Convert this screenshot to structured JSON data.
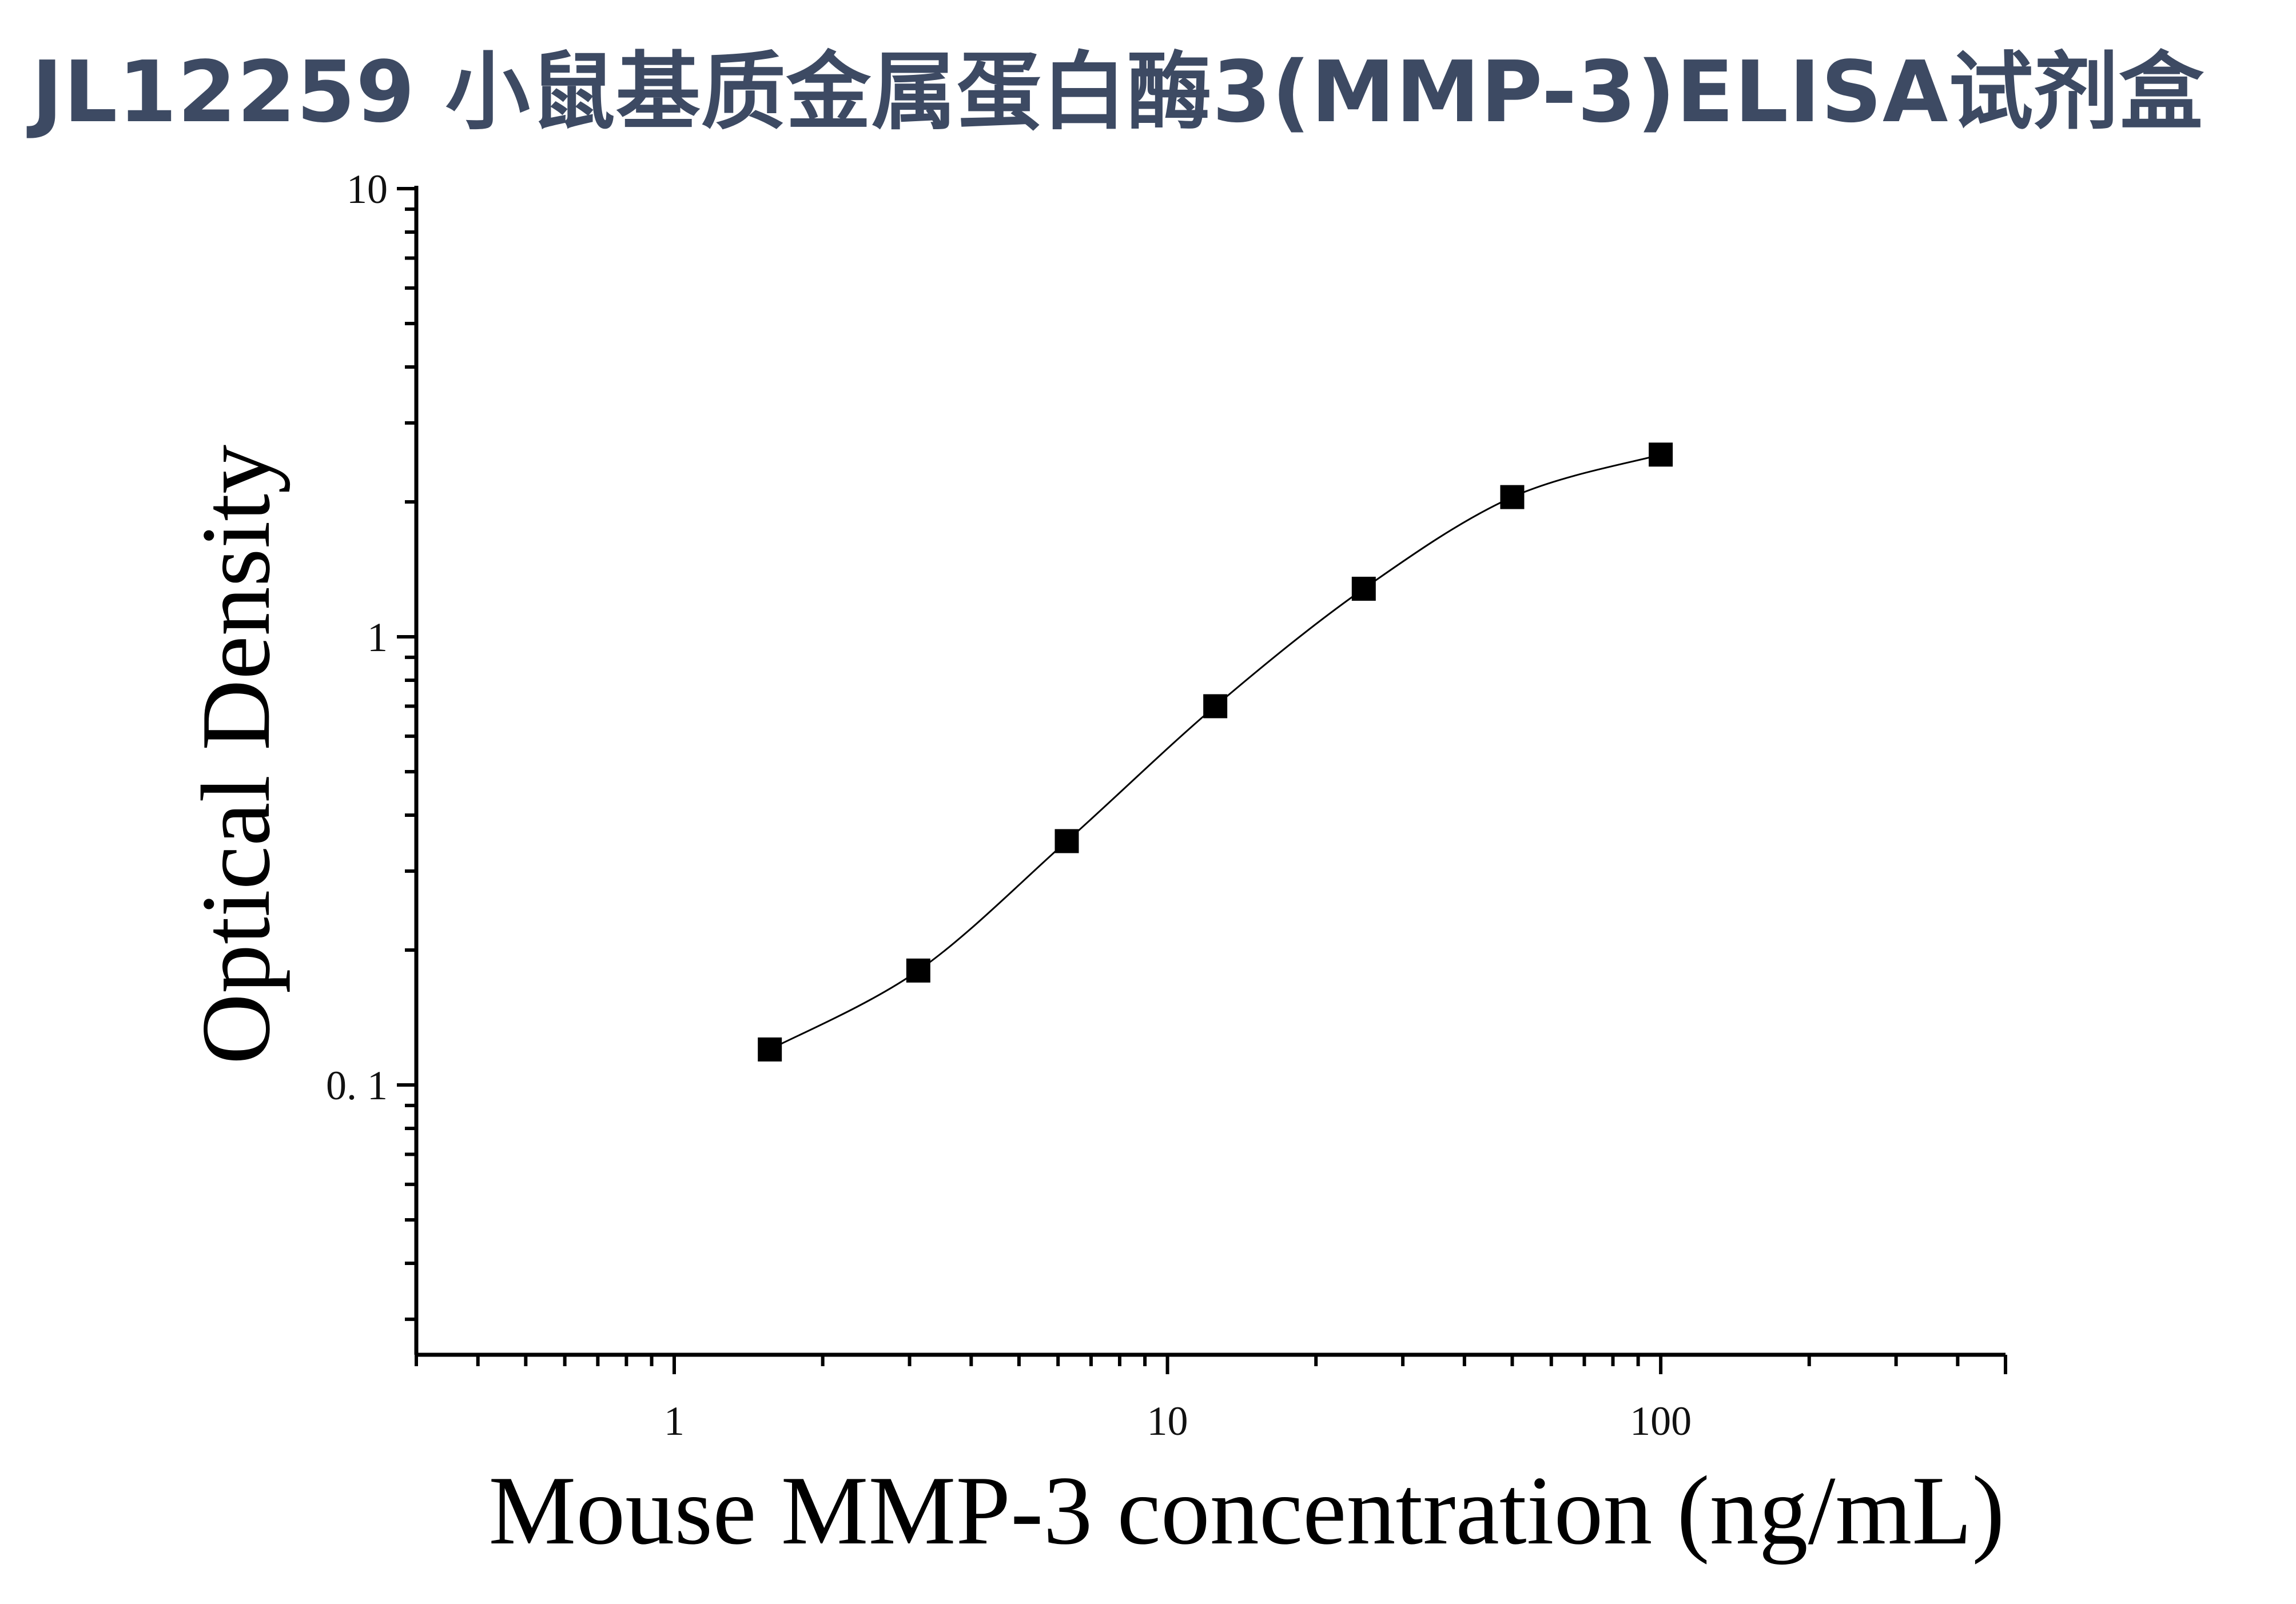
{
  "title": "JL12259 小鼠基质金属蛋白酶3(MMP-3)ELISA试剂盒",
  "chart_data": {
    "type": "scatter",
    "title": "JL12259 小鼠基质金属蛋白酶3(MMP-3)ELISA试剂盒",
    "xlabel": "Mouse MMP-3 concentration (ng/mL)",
    "ylabel": "Optical Density",
    "x_scale": "log",
    "y_scale": "log",
    "xlim": [
      0.3,
      500
    ],
    "ylim": [
      0.025,
      10
    ],
    "x_ticks": [
      {
        "value": 1,
        "label": "1"
      },
      {
        "value": 10,
        "label": "10"
      },
      {
        "value": 100,
        "label": "100"
      }
    ],
    "y_ticks": [
      {
        "value": 0.1,
        "label": "0. 1"
      },
      {
        "value": 1,
        "label": "1"
      },
      {
        "value": 10,
        "label": "10"
      }
    ],
    "grid": false,
    "legend": "none",
    "fit_curve": true,
    "marker": "square",
    "color": "#000000",
    "series": [
      {
        "x": [
          1.5625,
          3.125,
          6.25,
          12.5,
          25,
          50,
          100
        ],
        "y": [
          0.12,
          0.18,
          0.35,
          0.7,
          1.28,
          2.05,
          2.55
        ]
      }
    ]
  }
}
